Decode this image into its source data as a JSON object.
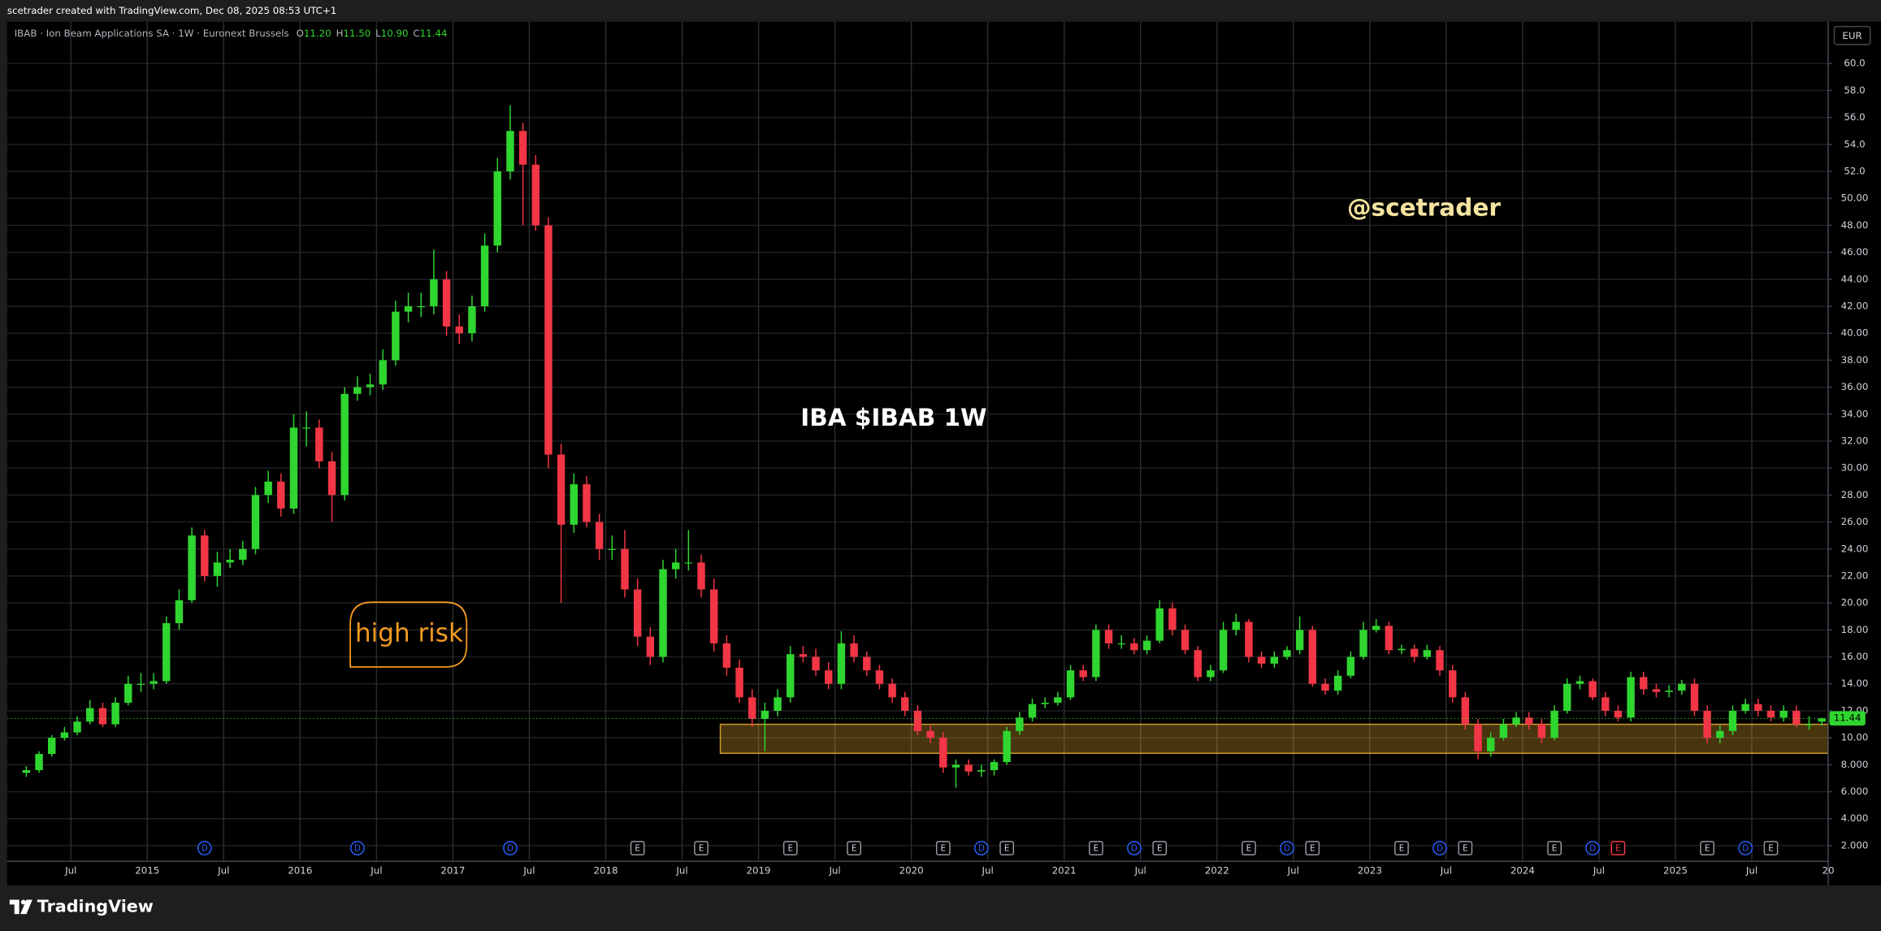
{
  "header": "scetrader created with TradingView.com, Dec 08, 2025 08:53 UTC+1",
  "brand": "TradingView",
  "chart_data": {
    "type": "candlestick",
    "title": "IBA $IBAB 1W",
    "symbol_info": "IBAB · Ion Beam Applications SA · 1W · Euronext Brussels",
    "legend_keys": [
      "O",
      "H",
      "L",
      "C"
    ],
    "legend_values": [
      "11.20",
      "11.50",
      "10.90",
      "11.44"
    ],
    "currency": "EUR",
    "last_price_label": "11.44",
    "annotations": [
      {
        "text": "@scetrader",
        "color": "#f5e3a0"
      },
      {
        "text": "high risk",
        "color": "#f29a1f"
      }
    ],
    "up_color": "#2fd62f",
    "down_color": "#f23645",
    "grid": true,
    "x": [
      "2014-03",
      "2014-04",
      "2014-05",
      "2014-06",
      "2014-07",
      "2014-08",
      "2014-09",
      "2014-10",
      "2014-11",
      "2014-12",
      "2015-01",
      "2015-02",
      "2015-03",
      "2015-04",
      "2015-05",
      "2015-06",
      "2015-07",
      "2015-08",
      "2015-09",
      "2015-10",
      "2015-11",
      "2015-12",
      "2016-01",
      "2016-02",
      "2016-03",
      "2016-04",
      "2016-05",
      "2016-06",
      "2016-07",
      "2016-08",
      "2016-09",
      "2016-10",
      "2016-11",
      "2016-12",
      "2017-01",
      "2017-02",
      "2017-03",
      "2017-04",
      "2017-05",
      "2017-06",
      "2017-07",
      "2017-08",
      "2017-09",
      "2017-10",
      "2017-11",
      "2017-12",
      "2018-01",
      "2018-02",
      "2018-03",
      "2018-04",
      "2018-05",
      "2018-06",
      "2018-07",
      "2018-08",
      "2018-09",
      "2018-10",
      "2018-11",
      "2018-12",
      "2019-01",
      "2019-02",
      "2019-03",
      "2019-04",
      "2019-05",
      "2019-06",
      "2019-07",
      "2019-08",
      "2019-09",
      "2019-10",
      "2019-11",
      "2019-12",
      "2020-01",
      "2020-02",
      "2020-03",
      "2020-04",
      "2020-05",
      "2020-06",
      "2020-07",
      "2020-08",
      "2020-09",
      "2020-10",
      "2020-11",
      "2020-12",
      "2021-01",
      "2021-02",
      "2021-03",
      "2021-04",
      "2021-05",
      "2021-06",
      "2021-07",
      "2021-08",
      "2021-09",
      "2021-10",
      "2021-11",
      "2021-12",
      "2022-01",
      "2022-02",
      "2022-03",
      "2022-04",
      "2022-05",
      "2022-06",
      "2022-07",
      "2022-08",
      "2022-09",
      "2022-10",
      "2022-11",
      "2022-12",
      "2023-01",
      "2023-02",
      "2023-03",
      "2023-04",
      "2023-05",
      "2023-06",
      "2023-07",
      "2023-08",
      "2023-09",
      "2023-10",
      "2023-11",
      "2023-12",
      "2024-01",
      "2024-02",
      "2024-03",
      "2024-04",
      "2024-05",
      "2024-06",
      "2024-07",
      "2024-08",
      "2024-09",
      "2024-10",
      "2024-11",
      "2024-12",
      "2025-01",
      "2025-02",
      "2025-03",
      "2025-04",
      "2025-05",
      "2025-06",
      "2025-07",
      "2025-08",
      "2025-09",
      "2025-10",
      "2025-11",
      "2025-12"
    ],
    "open": [
      7.4,
      7.6,
      8.8,
      10.0,
      10.4,
      11.2,
      12.2,
      11.0,
      12.6,
      14.0,
      14.0,
      14.2,
      18.5,
      20.2,
      25.0,
      22.0,
      23.0,
      23.2,
      24.0,
      28.0,
      29.0,
      27.0,
      33.0,
      33.0,
      30.5,
      28.0,
      35.5,
      36.0,
      36.2,
      38.0,
      41.6,
      42.0,
      42.0,
      44.0,
      40.5,
      40.0,
      42.0,
      46.5,
      52.0,
      55.0,
      52.5,
      48.0,
      31.0,
      25.8,
      28.8,
      26.0,
      24.0,
      24.0,
      21.0,
      17.5,
      16.0,
      22.5,
      23.0,
      23.0,
      21.0,
      17.0,
      15.2,
      13.0,
      11.4,
      12.0,
      13.0,
      16.2,
      16.0,
      15.0,
      14.0,
      17.0,
      16.0,
      15.0,
      14.0,
      13.0,
      12.0,
      10.5,
      10.0,
      7.8,
      8.0,
      7.5,
      7.6,
      8.2,
      10.5,
      11.5,
      12.5,
      12.6,
      13.0,
      15.0,
      14.5,
      18.0,
      17.0,
      17.0,
      16.5,
      17.2,
      19.6,
      18.0,
      16.5,
      14.5,
      15.0,
      18.0,
      18.6,
      16.0,
      15.5,
      16.0,
      16.5,
      18.0,
      14.0,
      13.5,
      14.6,
      16.0,
      18.0,
      18.3,
      16.5,
      16.6,
      16.0,
      16.5,
      15.0,
      13.0,
      11.0,
      9.0,
      10.0,
      11.0,
      11.5,
      11.0,
      10.0,
      12.0,
      14.0,
      14.2,
      13.0,
      12.0,
      11.5,
      14.5,
      13.6,
      13.4,
      13.5,
      14.0,
      12.0,
      10.0,
      10.5,
      12.0,
      12.5,
      12.0,
      11.5,
      12.0,
      11.0,
      11.2
    ],
    "high": [
      7.9,
      9.0,
      10.2,
      10.8,
      11.6,
      12.8,
      12.6,
      13.0,
      14.6,
      14.8,
      14.8,
      19.0,
      21.0,
      25.6,
      25.4,
      23.8,
      24.0,
      24.6,
      28.6,
      29.8,
      29.6,
      34.0,
      34.2,
      33.6,
      31.2,
      36.0,
      36.8,
      37.0,
      38.8,
      42.4,
      43.0,
      43.0,
      46.2,
      44.6,
      41.4,
      42.8,
      47.4,
      53.0,
      56.9,
      55.6,
      53.2,
      48.6,
      31.8,
      29.6,
      29.4,
      26.6,
      25.0,
      25.4,
      21.8,
      18.2,
      23.2,
      24.0,
      25.4,
      23.6,
      21.8,
      17.6,
      15.8,
      13.6,
      12.6,
      13.6,
      16.8,
      16.8,
      16.6,
      15.6,
      17.9,
      17.6,
      16.4,
      15.4,
      14.4,
      13.4,
      12.4,
      10.9,
      10.4,
      8.4,
      8.4,
      8.0,
      8.4,
      10.8,
      11.9,
      12.9,
      13.0,
      13.4,
      15.4,
      15.4,
      18.4,
      18.4,
      17.6,
      17.4,
      17.6,
      20.2,
      20.0,
      18.4,
      16.8,
      15.4,
      18.6,
      19.2,
      18.8,
      16.4,
      16.4,
      16.8,
      19.0,
      18.3,
      14.4,
      15.0,
      16.4,
      18.6,
      18.8,
      18.6,
      16.9,
      16.9,
      16.9,
      16.8,
      15.4,
      13.4,
      11.4,
      10.4,
      11.4,
      11.9,
      11.9,
      11.4,
      12.4,
      14.4,
      14.6,
      14.4,
      13.4,
      12.4,
      14.9,
      14.9,
      14.0,
      13.9,
      14.3,
      14.4,
      12.4,
      10.9,
      12.4,
      12.9,
      12.9,
      12.4,
      12.4,
      12.4,
      11.6,
      11.5
    ],
    "low": [
      7.1,
      7.4,
      8.6,
      9.8,
      10.2,
      11.0,
      10.8,
      10.8,
      12.4,
      13.4,
      13.6,
      14.0,
      18.0,
      20.0,
      21.6,
      21.2,
      22.6,
      22.8,
      23.6,
      27.4,
      26.4,
      26.6,
      31.6,
      30.0,
      26.0,
      27.6,
      35.0,
      35.4,
      35.8,
      37.6,
      40.8,
      41.2,
      41.4,
      39.8,
      39.2,
      39.4,
      41.6,
      46.0,
      51.4,
      48.0,
      47.6,
      30.0,
      20.0,
      25.2,
      25.6,
      23.2,
      23.2,
      20.4,
      16.8,
      15.4,
      15.6,
      21.8,
      22.4,
      20.4,
      16.4,
      14.6,
      12.6,
      10.8,
      9.0,
      11.6,
      12.6,
      15.6,
      14.6,
      13.6,
      13.6,
      15.6,
      14.6,
      13.6,
      12.6,
      11.6,
      10.2,
      9.6,
      7.4,
      6.3,
      7.2,
      7.1,
      7.2,
      8.0,
      10.2,
      11.2,
      12.2,
      12.4,
      12.8,
      14.2,
      14.2,
      16.6,
      16.6,
      16.2,
      16.2,
      17.0,
      17.6,
      16.2,
      14.2,
      14.2,
      14.8,
      17.6,
      15.6,
      15.2,
      15.2,
      15.8,
      16.2,
      13.8,
      13.2,
      13.2,
      14.4,
      15.8,
      17.8,
      16.2,
      16.2,
      15.6,
      15.8,
      14.6,
      12.6,
      10.6,
      8.4,
      8.6,
      9.8,
      10.8,
      10.6,
      9.6,
      9.8,
      11.8,
      13.6,
      12.8,
      11.6,
      11.2,
      11.2,
      13.2,
      13.0,
      13.0,
      13.2,
      11.6,
      9.6,
      9.6,
      10.2,
      11.8,
      11.6,
      11.2,
      11.2,
      10.8,
      10.6,
      10.9
    ],
    "close": [
      7.6,
      8.8,
      10.0,
      10.4,
      11.2,
      12.2,
      11.0,
      12.6,
      14.0,
      14.0,
      14.2,
      18.5,
      20.2,
      25.0,
      22.0,
      23.0,
      23.2,
      24.0,
      28.0,
      29.0,
      27.0,
      33.0,
      33.0,
      30.5,
      28.0,
      35.5,
      36.0,
      36.2,
      38.0,
      41.6,
      42.0,
      42.0,
      44.0,
      40.5,
      40.0,
      42.0,
      46.5,
      52.0,
      55.0,
      52.5,
      48.0,
      31.0,
      25.8,
      28.8,
      26.0,
      24.0,
      24.0,
      21.0,
      17.5,
      16.0,
      22.5,
      23.0,
      23.0,
      21.0,
      17.0,
      15.2,
      13.0,
      11.4,
      12.0,
      13.0,
      16.2,
      16.0,
      15.0,
      14.0,
      17.0,
      16.0,
      15.0,
      14.0,
      13.0,
      12.0,
      10.5,
      10.0,
      7.8,
      8.0,
      7.5,
      7.6,
      8.2,
      10.5,
      11.5,
      12.5,
      12.6,
      13.0,
      15.0,
      14.5,
      18.0,
      17.0,
      17.0,
      16.5,
      17.2,
      19.6,
      18.0,
      16.5,
      14.5,
      15.0,
      18.0,
      18.6,
      16.0,
      15.5,
      16.0,
      16.5,
      18.0,
      14.0,
      13.5,
      14.6,
      16.0,
      18.0,
      18.3,
      16.5,
      16.6,
      16.0,
      16.5,
      15.0,
      13.0,
      11.0,
      9.0,
      10.0,
      11.0,
      11.5,
      11.0,
      10.0,
      12.0,
      14.0,
      14.2,
      13.0,
      12.0,
      11.5,
      14.5,
      13.6,
      13.4,
      13.5,
      14.0,
      12.0,
      10.0,
      10.5,
      12.0,
      12.5,
      12.0,
      11.5,
      12.0,
      11.0,
      11.0,
      11.44
    ],
    "zone": {
      "from": "2018-10",
      "top": 11.0,
      "bottom": 8.85,
      "color": "#f0b030"
    },
    "events": [
      {
        "x": "2015-05",
        "label": "D",
        "color": "#2962ff"
      },
      {
        "x": "2016-05",
        "label": "D",
        "color": "#2962ff"
      },
      {
        "x": "2017-05",
        "label": "D",
        "color": "#2962ff"
      },
      {
        "x": "2018-03",
        "label": "E",
        "color": "#9598a1"
      },
      {
        "x": "2018-08",
        "label": "E",
        "color": "#9598a1"
      },
      {
        "x": "2019-03",
        "label": "E",
        "color": "#9598a1"
      },
      {
        "x": "2019-08",
        "label": "E",
        "color": "#9598a1"
      },
      {
        "x": "2020-03",
        "label": "E",
        "color": "#9598a1"
      },
      {
        "x": "2020-06",
        "label": "D",
        "color": "#2962ff"
      },
      {
        "x": "2020-08",
        "label": "E",
        "color": "#9598a1"
      },
      {
        "x": "2021-03",
        "label": "E",
        "color": "#9598a1"
      },
      {
        "x": "2021-06",
        "label": "D",
        "color": "#2962ff"
      },
      {
        "x": "2021-08",
        "label": "E",
        "color": "#9598a1"
      },
      {
        "x": "2022-03",
        "label": "E",
        "color": "#9598a1"
      },
      {
        "x": "2022-06",
        "label": "D",
        "color": "#2962ff"
      },
      {
        "x": "2022-08",
        "label": "E",
        "color": "#9598a1"
      },
      {
        "x": "2023-03",
        "label": "E",
        "color": "#9598a1"
      },
      {
        "x": "2023-06",
        "label": "D",
        "color": "#2962ff"
      },
      {
        "x": "2023-08",
        "label": "E",
        "color": "#9598a1"
      },
      {
        "x": "2024-03",
        "label": "E",
        "color": "#9598a1"
      },
      {
        "x": "2024-06",
        "label": "D",
        "color": "#2962ff"
      },
      {
        "x": "2024-08",
        "label": "E",
        "color": "#f23645"
      },
      {
        "x": "2025-03",
        "label": "E",
        "color": "#9598a1"
      },
      {
        "x": "2025-06",
        "label": "D",
        "color": "#2962ff"
      },
      {
        "x": "2025-08",
        "label": "E",
        "color": "#9598a1"
      }
    ],
    "xlim": [
      "2014-02",
      "2026-01"
    ],
    "xticks": [
      {
        "value": "2014-07",
        "label": "Jul"
      },
      {
        "value": "2015-01",
        "label": "2015"
      },
      {
        "value": "2015-07",
        "label": "Jul"
      },
      {
        "value": "2016-01",
        "label": "2016"
      },
      {
        "value": "2016-07",
        "label": "Jul"
      },
      {
        "value": "2017-01",
        "label": "2017"
      },
      {
        "value": "2017-07",
        "label": "Jul"
      },
      {
        "value": "2018-01",
        "label": "2018"
      },
      {
        "value": "2018-07",
        "label": "Jul"
      },
      {
        "value": "2019-01",
        "label": "2019"
      },
      {
        "value": "2019-07",
        "label": "Jul"
      },
      {
        "value": "2020-01",
        "label": "2020"
      },
      {
        "value": "2020-07",
        "label": "Jul"
      },
      {
        "value": "2021-01",
        "label": "2021"
      },
      {
        "value": "2021-07",
        "label": "Jul"
      },
      {
        "value": "2022-01",
        "label": "2022"
      },
      {
        "value": "2022-07",
        "label": "Jul"
      },
      {
        "value": "2023-01",
        "label": "2023"
      },
      {
        "value": "2023-07",
        "label": "Jul"
      },
      {
        "value": "2024-01",
        "label": "2024"
      },
      {
        "value": "2024-07",
        "label": "Jul"
      },
      {
        "value": "2025-01",
        "label": "2025"
      },
      {
        "value": "2025-07",
        "label": "Jul"
      },
      {
        "value": "2026-01",
        "label": "20"
      }
    ],
    "ylim": [
      0.84,
      63.1
    ],
    "yticks": [
      {
        "value": 60,
        "label": "60.0"
      },
      {
        "value": 58,
        "label": "58.0"
      },
      {
        "value": 56,
        "label": "56.0"
      },
      {
        "value": 54,
        "label": "54.0"
      },
      {
        "value": 52,
        "label": "52.0"
      },
      {
        "value": 50,
        "label": "50.00"
      },
      {
        "value": 48,
        "label": "48.00"
      },
      {
        "value": 46,
        "label": "46.00"
      },
      {
        "value": 44,
        "label": "44.00"
      },
      {
        "value": 42,
        "label": "42.00"
      },
      {
        "value": 40,
        "label": "40.00"
      },
      {
        "value": 38,
        "label": "38.00"
      },
      {
        "value": 36,
        "label": "36.00"
      },
      {
        "value": 34,
        "label": "34.00"
      },
      {
        "value": 32,
        "label": "32.00"
      },
      {
        "value": 30,
        "label": "30.00"
      },
      {
        "value": 28,
        "label": "28.00"
      },
      {
        "value": 26,
        "label": "26.00"
      },
      {
        "value": 24,
        "label": "24.00"
      },
      {
        "value": 22,
        "label": "22.00"
      },
      {
        "value": 20,
        "label": "20.00"
      },
      {
        "value": 18,
        "label": "18.00"
      },
      {
        "value": 16,
        "label": "16.00"
      },
      {
        "value": 14,
        "label": "14.00"
      },
      {
        "value": 12,
        "label": "12.00"
      },
      {
        "value": 10,
        "label": "10.00"
      },
      {
        "value": 8,
        "label": "8.000"
      },
      {
        "value": 6,
        "label": "6.000"
      },
      {
        "value": 4,
        "label": "4.000"
      },
      {
        "value": 2,
        "label": "2.000"
      }
    ]
  }
}
